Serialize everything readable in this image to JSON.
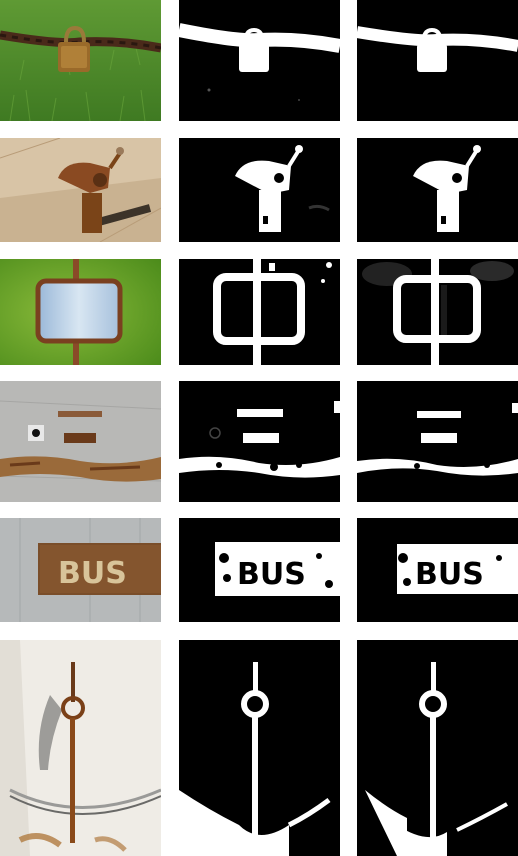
{
  "figure": {
    "columns": [
      "photo",
      "mask-a",
      "mask-b"
    ],
    "rows": [
      {
        "id": "padlock",
        "word": ""
      },
      {
        "id": "latch",
        "word": ""
      },
      {
        "id": "sign-frame",
        "word": ""
      },
      {
        "id": "wall-plates",
        "word": ""
      },
      {
        "id": "bus-sign",
        "word": "BUS"
      },
      {
        "id": "ring-hook",
        "word": ""
      }
    ]
  },
  "colors": {
    "mask_bg": "#000000",
    "mask_fg": "#ffffff",
    "rust": "#8a4a22",
    "grass": "#4f8a2a",
    "wall": "#b8b8b6"
  }
}
